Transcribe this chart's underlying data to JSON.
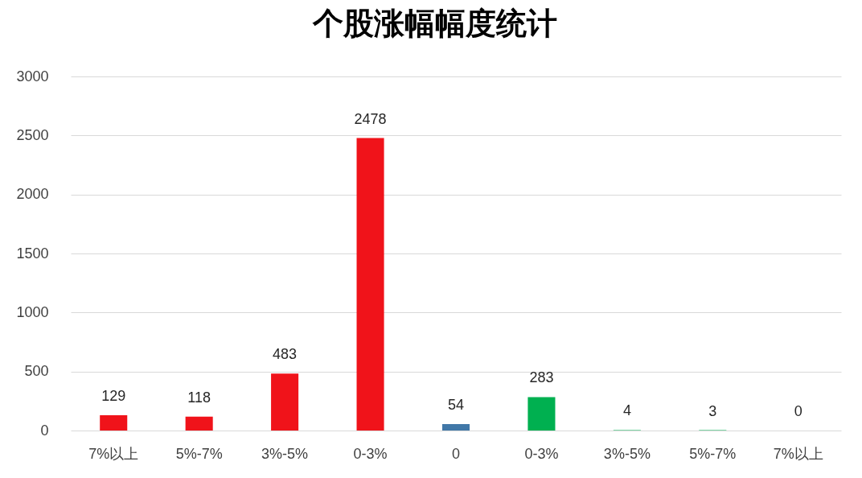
{
  "chart_data": {
    "type": "bar",
    "title": "个股涨幅幅度统计",
    "categories": [
      "7%以上",
      "5%-7%",
      "3%-5%",
      "0-3%",
      "0",
      "0-3%",
      "3%-5%",
      "5%-7%",
      "7%以上"
    ],
    "values": [
      129,
      118,
      483,
      2478,
      54,
      283,
      4,
      3,
      0
    ],
    "colors": [
      "#f0131a",
      "#f0131a",
      "#f0131a",
      "#f0131a",
      "#4178a8",
      "#00b050",
      "#00b050",
      "#00b050",
      "#00b050"
    ],
    "ylim": [
      0,
      3000
    ],
    "yticks": [
      0,
      500,
      1000,
      1500,
      2000,
      2500,
      3000
    ],
    "grid": "y",
    "data_labels": true
  }
}
